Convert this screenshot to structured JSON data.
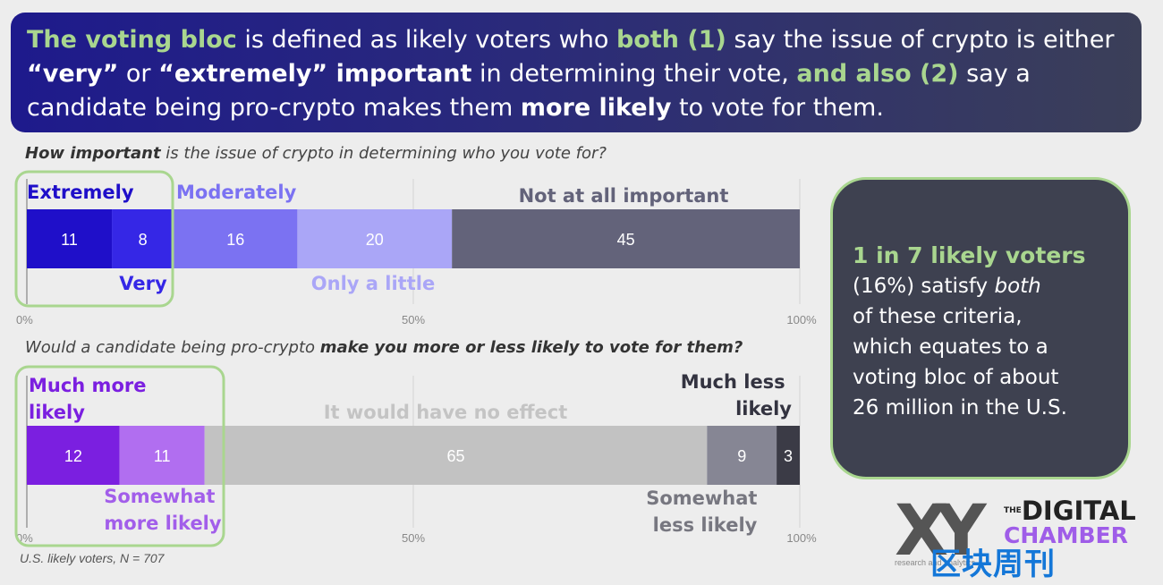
{
  "banner": {
    "p1": "The voting bloc",
    "p2": " is defined as likely voters who ",
    "p3": "both (1)",
    "p4": " say the issue of crypto is either ",
    "p5": "“very”",
    "p6": " or ",
    "p7": "“extremely” important",
    "p8": " in determining their vote, ",
    "p9": "and also (2)",
    "p10": " say a candidate being pro-crypto makes them ",
    "p11": "more likely",
    "p12": " to vote for them."
  },
  "q1": {
    "a": "How important",
    "b": " is the issue of crypto in determining who you vote for?"
  },
  "q2": {
    "a": "Would a candidate being pro-crypto ",
    "b": "make you more or less likely to vote for them?"
  },
  "callout": {
    "headline": "1 in 7 likely voters",
    "l1a": "(16%) satisfy ",
    "l1b": "both",
    "l2": "of these criteria,",
    "l3": "which equates to a",
    "l4": "voting bloc of about",
    "l5": "26 million in the U.S."
  },
  "footnote": "U.S. likely voters, N = 707",
  "logo": {
    "xy": "XY",
    "the": "THE",
    "line1": "DIGITAL",
    "line2": "CHAMBER",
    "sub": "research and analytics"
  },
  "watermark": "区块周刊",
  "chart_data": [
    {
      "type": "bar",
      "orientation": "horizontal-stacked",
      "title": "How important is the issue of crypto in determining who you vote for?",
      "categories": [
        "Extremely",
        "Very",
        "Moderately",
        "Only a little",
        "Not at all important"
      ],
      "values": [
        11,
        8,
        16,
        20,
        45
      ],
      "colors": [
        "#1f0fc9",
        "#3527e6",
        "#7b72f2",
        "#aaa6f7",
        "#63637a"
      ],
      "label_colors": [
        "#1f0fc9",
        "#3527e6",
        "#7b72f2",
        "#aaa6f7",
        "#63637a"
      ],
      "ticks": [
        "0%",
        "50%",
        "100%"
      ],
      "xlim": [
        0,
        100
      ]
    },
    {
      "type": "bar",
      "orientation": "horizontal-stacked",
      "title": "Would a candidate being pro-crypto make you more or less likely to vote for them?",
      "categories": [
        "Much more likely",
        "Somewhat more likely",
        "It would have no effect",
        "Somewhat less likely",
        "Much less likely"
      ],
      "values": [
        12,
        11,
        65,
        9,
        3
      ],
      "colors": [
        "#7b1fe0",
        "#b16ef0",
        "#c2c2c2",
        "#868694",
        "#3b3b46"
      ],
      "label_colors": [
        "#7b1fe0",
        "#a25eea",
        "#c4c4c4",
        "#777780",
        "#333340"
      ],
      "ticks": [
        "0%",
        "50%",
        "100%"
      ],
      "xlim": [
        0,
        100
      ]
    }
  ]
}
